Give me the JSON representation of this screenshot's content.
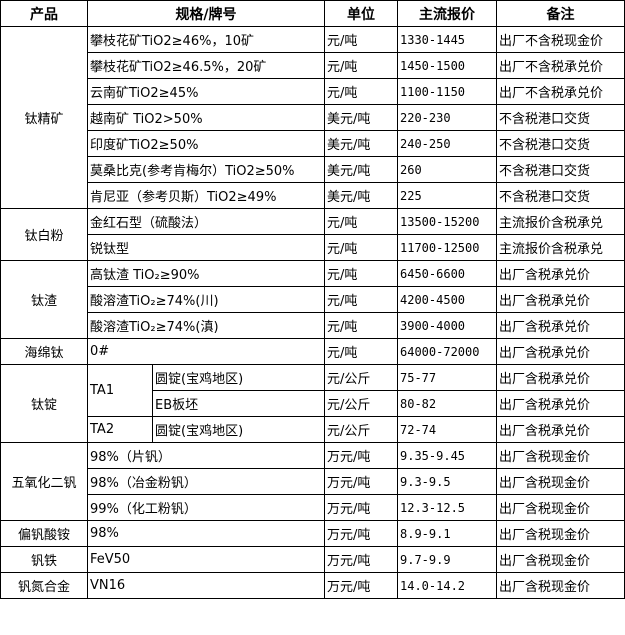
{
  "headers": [
    "产品",
    "规格/牌号",
    "单位",
    "主流报价",
    "备注"
  ],
  "groups": [
    {
      "product": "钛精矿",
      "items": [
        {
          "spec": "攀枝花矿TiO2≥46%，10矿",
          "unit": "元/吨",
          "price": "1330-1445",
          "note": "出厂不含税现金价"
        },
        {
          "spec": "攀枝花矿TiO2≥46.5%，20矿",
          "unit": "元/吨",
          "price": "1450-1500",
          "note": "出厂不含税承兑价"
        },
        {
          "spec": "云南矿TiO2≥45%",
          "unit": "元/吨",
          "price": "1100-1150",
          "note": "出厂不含税承兑价"
        },
        {
          "spec": "越南矿 TiO2>50%",
          "unit": "美元/吨",
          "price": "220-230",
          "note": "不含税港口交货"
        },
        {
          "spec": "印度矿TiO2≥50%",
          "unit": "美元/吨",
          "price": "240-250",
          "note": "不含税港口交货"
        },
        {
          "spec": "莫桑比克(参考肯梅尔）TiO2≥50%",
          "unit": "美元/吨",
          "price": "260",
          "note": "不含税港口交货"
        },
        {
          "spec": "肯尼亚（参考贝斯）TiO2≥49%",
          "unit": "美元/吨",
          "price": "225",
          "note": "不含税港口交货"
        }
      ]
    },
    {
      "product": "钛白粉",
      "items": [
        {
          "spec": "金红石型（硫酸法）",
          "unit": "元/吨",
          "price": "13500-15200",
          "note": "主流报价含税承兑"
        },
        {
          "spec": "锐钛型",
          "unit": "元/吨",
          "price": "11700-12500",
          "note": "主流报价含税承兑"
        }
      ]
    },
    {
      "product": "钛渣",
      "items": [
        {
          "spec": "高钛渣 TiO₂≥90%",
          "unit": "元/吨",
          "price": "6450-6600",
          "note": "出厂含税承兑价"
        },
        {
          "spec": "酸溶渣TiO₂≥74%(川)",
          "unit": "元/吨",
          "price": "4200-4500",
          "note": "出厂含税承兑价"
        },
        {
          "spec": "酸溶渣TiO₂≥74%(滇)",
          "unit": "元/吨",
          "price": "3900-4000",
          "note": "出厂含税承兑价"
        }
      ]
    },
    {
      "product": "海绵钛",
      "items": [
        {
          "spec": "0#",
          "unit": "元/吨",
          "price": "64000-72000",
          "note": "出厂含税承兑价"
        }
      ]
    },
    {
      "product": "钛锭",
      "items": [
        {
          "grade": "TA1",
          "grade_span": 2,
          "spec": "圆锭(宝鸡地区)",
          "unit": "元/公斤",
          "price": "75-77",
          "note": "出厂含税承兑价"
        },
        {
          "spec": "EB板坯",
          "unit": "元/公斤",
          "price": "80-82",
          "note": "出厂含税承兑价"
        },
        {
          "grade": "TA2",
          "grade_span": 1,
          "spec": "圆锭(宝鸡地区)",
          "unit": "元/公斤",
          "price": "72-74",
          "note": "出厂含税承兑价"
        }
      ]
    },
    {
      "product": "五氧化二钒",
      "items": [
        {
          "spec": "98%（片钒）",
          "unit": "万元/吨",
          "price": "9.35-9.45",
          "note": "出厂含税现金价"
        },
        {
          "spec": "98%（冶金粉钒）",
          "unit": "万元/吨",
          "price": "9.3-9.5",
          "note": "出厂含税现金价"
        },
        {
          "spec": "99%（化工粉钒）",
          "unit": "万元/吨",
          "price": "12.3-12.5",
          "note": "出厂含税现金价"
        }
      ]
    },
    {
      "product": "偏钒酸铵",
      "items": [
        {
          "spec": "98%",
          "unit": "万元/吨",
          "price": "8.9-9.1",
          "note": "出厂含税现金价"
        }
      ]
    },
    {
      "product": "钒铁",
      "items": [
        {
          "spec": "FeV50",
          "unit": "万元/吨",
          "price": "9.7-9.9",
          "note": "出厂含税现金价"
        }
      ]
    },
    {
      "product": "钒氮合金",
      "items": [
        {
          "spec": "VN16",
          "unit": "万元/吨",
          "price": "14.0-14.2",
          "note": "出厂含税现金价"
        }
      ]
    }
  ]
}
